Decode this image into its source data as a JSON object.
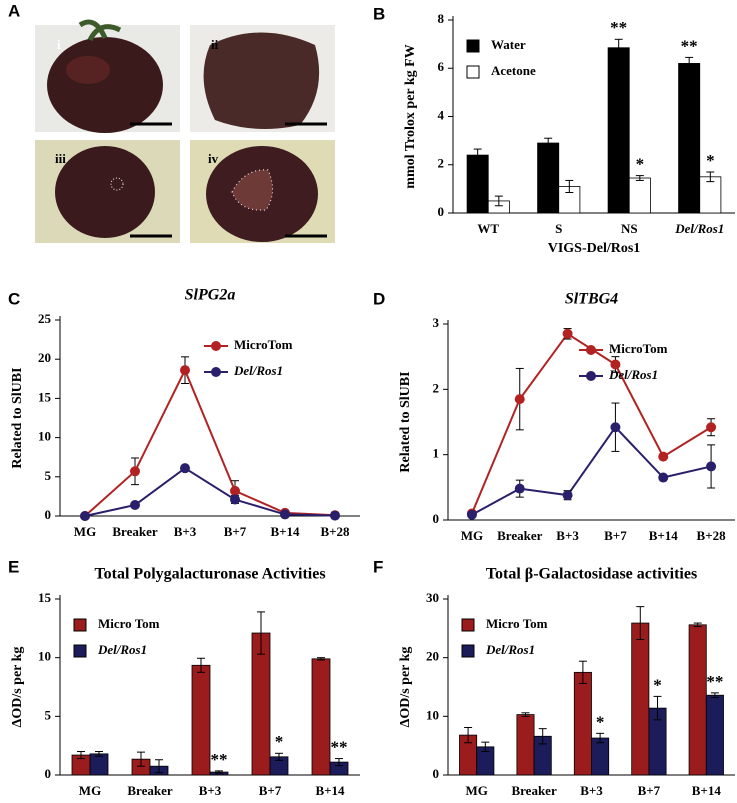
{
  "photo_panel": {
    "panel": "A",
    "labels": [
      "i",
      "ii",
      "iii",
      "iv"
    ]
  },
  "chart_data": [
    {
      "panel": "B",
      "type": "bar",
      "ylabel": "mmol Trolox per kg FW",
      "categories": [
        "WT",
        "S",
        "NS",
        "Del/Ros1"
      ],
      "group_label": "VIGS-Del/Ros1",
      "ylim": [
        0,
        8
      ],
      "yticks": [
        0,
        2,
        4,
        6,
        8
      ],
      "legend": "upper-left",
      "series": [
        {
          "name": "Water",
          "color": "#000000",
          "values": [
            2.4,
            2.9,
            6.85,
            6.2
          ],
          "errors": [
            0.25,
            0.2,
            0.35,
            0.25
          ],
          "annotations": [
            null,
            null,
            "**",
            "**"
          ]
        },
        {
          "name": "Acetone",
          "color": "#ffffff",
          "values": [
            0.5,
            1.1,
            1.45,
            1.5
          ],
          "errors": [
            0.2,
            0.25,
            0.1,
            0.2
          ],
          "annotations": [
            null,
            null,
            "*",
            "*"
          ]
        }
      ]
    },
    {
      "panel": "C",
      "type": "line",
      "title": "SlPG2a",
      "ylabel": "Related to SlUBI",
      "categories": [
        "MG",
        "Breaker",
        "B+3",
        "B+7",
        "B+14",
        "B+28"
      ],
      "ylim": [
        0,
        25
      ],
      "yticks": [
        0,
        5,
        10,
        15,
        20,
        25
      ],
      "legend": "upper-right",
      "series": [
        {
          "name": "MicroTom",
          "color": "#b22222",
          "values": [
            0,
            5.7,
            18.6,
            3.2,
            0.4,
            0.1
          ],
          "errors": [
            0,
            1.7,
            1.7,
            1.3,
            0.1,
            0
          ]
        },
        {
          "name": "Del/Ros1",
          "color": "#2a1f6b",
          "values": [
            0,
            1.4,
            6.1,
            2.1,
            0.2,
            0.05
          ],
          "errors": [
            0,
            0.3,
            0.3,
            0.5,
            0.1,
            0
          ]
        }
      ]
    },
    {
      "panel": "D",
      "type": "line",
      "title": "SlTBG4",
      "ylabel": "Related to SlUBI",
      "categories": [
        "MG",
        "Breaker",
        "B+3",
        "B+7",
        "B+14",
        "B+28"
      ],
      "ylim": [
        0,
        3
      ],
      "yticks": [
        0,
        1,
        2,
        3
      ],
      "legend": "upper-right",
      "series": [
        {
          "name": "MicroTom",
          "color": "#b22222",
          "values": [
            0.1,
            1.85,
            2.85,
            2.38,
            0.97,
            1.42
          ],
          "errors": [
            0,
            0.47,
            0.08,
            0.12,
            0.03,
            0.13
          ]
        },
        {
          "name": "Del/Ros1",
          "color": "#2a1f6b",
          "values": [
            0.08,
            0.48,
            0.38,
            1.42,
            0.65,
            0.82
          ],
          "errors": [
            0,
            0.13,
            0.07,
            0.37,
            0.03,
            0.33
          ]
        }
      ]
    },
    {
      "panel": "E",
      "type": "bar",
      "title": "Total Polygalacturonase Activities",
      "ylabel": "ΔOD/s per kg",
      "categories": [
        "MG",
        "Breaker",
        "B+3",
        "B+7",
        "B+14"
      ],
      "ylim": [
        0,
        15
      ],
      "yticks": [
        0,
        5,
        10,
        15
      ],
      "legend": "upper-left",
      "series": [
        {
          "name": "Micro Tom",
          "color": "#9b1c1c",
          "values": [
            1.7,
            1.35,
            9.35,
            12.1,
            9.9
          ],
          "errors": [
            0.3,
            0.6,
            0.6,
            1.8,
            0.1
          ],
          "annotations": [
            null,
            null,
            null,
            null,
            null
          ]
        },
        {
          "name": "Del/Ros1",
          "color": "#1c1c5a",
          "values": [
            1.8,
            0.75,
            0.25,
            1.55,
            1.1
          ],
          "errors": [
            0.2,
            0.55,
            0.1,
            0.3,
            0.3
          ],
          "annotations": [
            null,
            null,
            "**",
            "*",
            "**"
          ]
        }
      ]
    },
    {
      "panel": "F",
      "type": "bar",
      "title": "Total β-Galactosidase activities",
      "ylabel": "ΔOD/s per kg",
      "categories": [
        "MG",
        "Breaker",
        "B+3",
        "B+7",
        "B+14"
      ],
      "ylim": [
        0,
        30
      ],
      "yticks": [
        0,
        10,
        20,
        30
      ],
      "legend": "upper-left",
      "series": [
        {
          "name": "Micro Tom",
          "color": "#9b1c1c",
          "values": [
            6.8,
            10.3,
            17.5,
            25.9,
            25.6
          ],
          "errors": [
            1.3,
            0.3,
            1.9,
            2.8,
            0.3
          ],
          "annotations": [
            null,
            null,
            null,
            null,
            null
          ]
        },
        {
          "name": "Del/Ros1",
          "color": "#1c1c5a",
          "values": [
            4.8,
            6.6,
            6.3,
            11.4,
            13.6
          ],
          "errors": [
            0.8,
            1.3,
            0.8,
            2.0,
            0.4
          ],
          "annotations": [
            null,
            null,
            "*",
            "*",
            "**"
          ]
        }
      ]
    }
  ]
}
